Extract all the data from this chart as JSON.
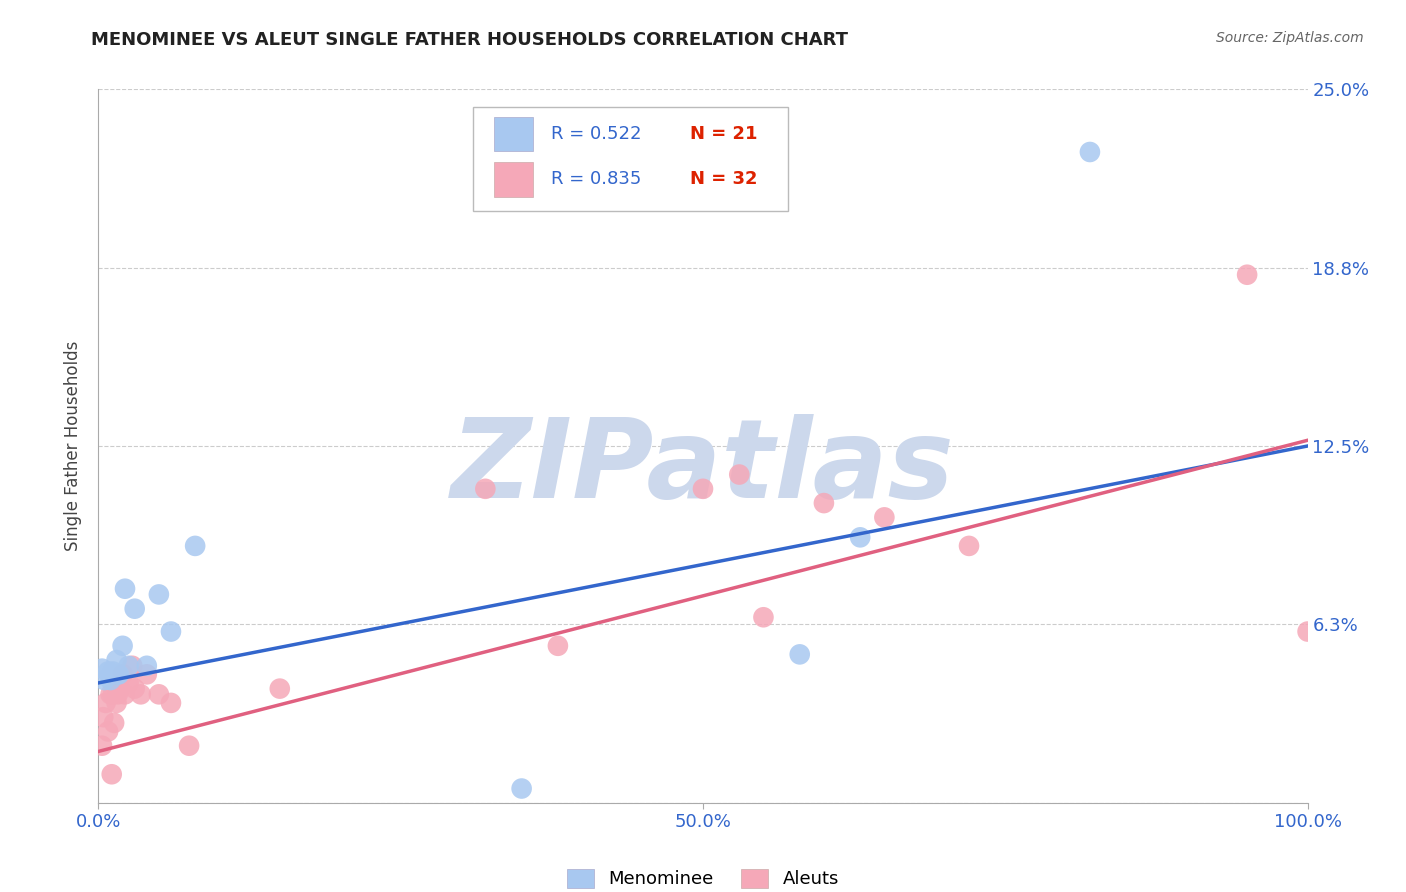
{
  "title": "MENOMINEE VS ALEUT SINGLE FATHER HOUSEHOLDS CORRELATION CHART",
  "source": "Source: ZipAtlas.com",
  "ylabel": "Single Father Households",
  "xlim": [
    0,
    1.0
  ],
  "ylim": [
    0,
    0.25
  ],
  "yticks": [
    0.0,
    0.0625,
    0.125,
    0.1875,
    0.25
  ],
  "ytick_labels": [
    "",
    "6.3%",
    "12.5%",
    "18.8%",
    "25.0%"
  ],
  "xticks": [
    0.0,
    0.5,
    1.0
  ],
  "xtick_labels": [
    "0.0%",
    "50.0%",
    "100.0%"
  ],
  "background_color": "#ffffff",
  "grid_color": "#cccccc",
  "menominee_color": "#a8c8f0",
  "aleut_color": "#f5a8b8",
  "menominee_line_color": "#3366cc",
  "aleut_line_color": "#e06080",
  "legend_R_menominee": "R = 0.522",
  "legend_N_menominee": "N = 21",
  "legend_R_aleut": "R = 0.835",
  "legend_N_aleut": "N = 32",
  "menominee_x": [
    0.003,
    0.005,
    0.008,
    0.01,
    0.012,
    0.013,
    0.015,
    0.016,
    0.017,
    0.02,
    0.022,
    0.025,
    0.03,
    0.04,
    0.05,
    0.06,
    0.08,
    0.35,
    0.58,
    0.63,
    0.82
  ],
  "menominee_y": [
    0.047,
    0.043,
    0.046,
    0.043,
    0.046,
    0.045,
    0.05,
    0.045,
    0.045,
    0.055,
    0.075,
    0.048,
    0.068,
    0.048,
    0.073,
    0.06,
    0.09,
    0.005,
    0.052,
    0.093,
    0.228
  ],
  "aleut_x": [
    0.003,
    0.004,
    0.006,
    0.008,
    0.01,
    0.011,
    0.012,
    0.013,
    0.015,
    0.016,
    0.018,
    0.02,
    0.022,
    0.025,
    0.028,
    0.03,
    0.035,
    0.04,
    0.05,
    0.06,
    0.075,
    0.15,
    0.32,
    0.38,
    0.5,
    0.53,
    0.55,
    0.6,
    0.65,
    0.72,
    0.95,
    1.0
  ],
  "aleut_y": [
    0.02,
    0.03,
    0.035,
    0.025,
    0.038,
    0.01,
    0.038,
    0.028,
    0.035,
    0.038,
    0.04,
    0.045,
    0.038,
    0.042,
    0.048,
    0.04,
    0.038,
    0.045,
    0.038,
    0.035,
    0.02,
    0.04,
    0.11,
    0.055,
    0.11,
    0.115,
    0.065,
    0.105,
    0.1,
    0.09,
    0.185,
    0.06
  ],
  "menominee_line_x": [
    0.0,
    1.0
  ],
  "menominee_line_y": [
    0.042,
    0.125
  ],
  "aleut_line_x": [
    0.0,
    1.0
  ],
  "aleut_line_y": [
    0.018,
    0.127
  ],
  "watermark": "ZIPatlas",
  "watermark_color": "#ccd8ec",
  "watermark_fontsize": 80,
  "title_fontsize": 13,
  "source_fontsize": 10,
  "ylabel_fontsize": 12,
  "tick_fontsize": 13,
  "legend_fontsize": 13,
  "scatter_size": 220,
  "scatter_alpha": 0.85
}
